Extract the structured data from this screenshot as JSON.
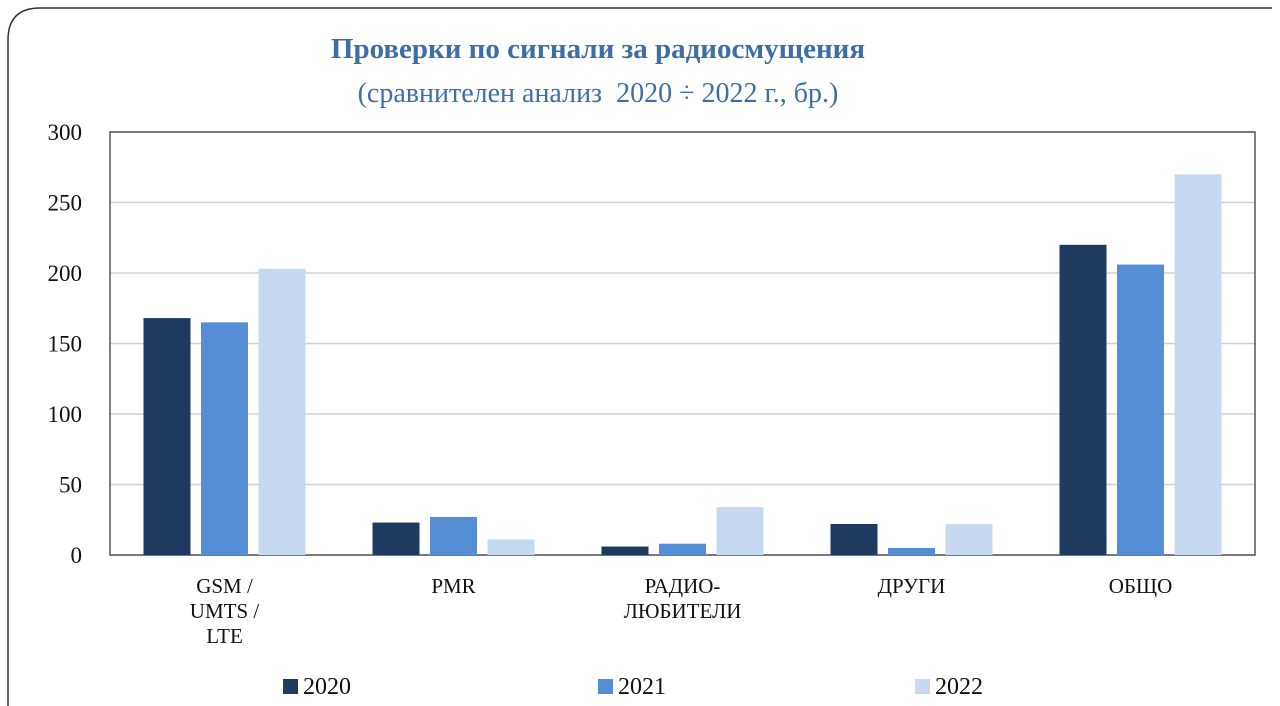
{
  "chart_data": {
    "type": "bar",
    "title": "Проверки по сигнали за радиосмущения",
    "subtitle": "(сравнителен анализ  2020 ÷ 2022 г., бр.)",
    "categories": [
      "GSM /\nUMTS /\nLTE",
      "PMR",
      "РАДИО-\nЛЮБИТЕЛИ",
      "ДРУГИ",
      "ОБЩО"
    ],
    "series": [
      {
        "name": "2020",
        "color": "#1f3a60",
        "values": [
          168,
          23,
          6,
          22,
          220
        ]
      },
      {
        "name": "2021",
        "color": "#558ed5",
        "values": [
          165,
          27,
          8,
          5,
          206
        ]
      },
      {
        "name": "2022",
        "color": "#c6d9f1",
        "values": [
          203,
          11,
          34,
          22,
          270
        ]
      }
    ],
    "ylim": [
      0,
      300
    ],
    "yticks": [
      0,
      50,
      100,
      150,
      200,
      250,
      300
    ],
    "grid": true,
    "legend": "bottom"
  }
}
